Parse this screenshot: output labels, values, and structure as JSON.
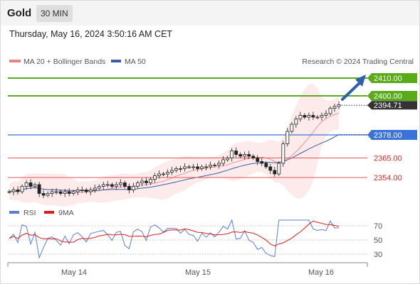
{
  "header": {
    "instrument": "Gold",
    "timeframe": "30 MIN"
  },
  "datetime": "Thursday, May 16, 2024 3:50:16 AM CET",
  "legend": {
    "bollinger": "MA 20 + Bollinger Bands",
    "ma50": "MA 50",
    "credit": "Research © 2024 Trading Central",
    "rsi": "RSI",
    "ma9": "9MA"
  },
  "colors": {
    "green_level": "#5aab19",
    "blue_level": "#3a72d8",
    "red_level": "#e05555",
    "price_label": "#333333",
    "arrow": "#2f5fb0",
    "bollinger": "#f08080",
    "ma50": "#3a5ea8",
    "candle": "#222222"
  },
  "levels": [
    {
      "value": 2410.0,
      "label": "2410.00",
      "color": "green",
      "name": "resistance-2410"
    },
    {
      "value": 2400.0,
      "label": "2400.00",
      "color": "green",
      "name": "resistance-2400"
    },
    {
      "value": 2378.0,
      "label": "2378.00",
      "color": "blue",
      "name": "pivot-2378"
    },
    {
      "value": 2365.0,
      "label": "2365.00",
      "color": "red",
      "name": "support-2365"
    },
    {
      "value": 2354.0,
      "label": "2354.00",
      "color": "red",
      "name": "support-2354"
    }
  ],
  "current_price": {
    "value": 2394.71,
    "label": "2394.71"
  },
  "chart_data": {
    "type": "candlestick",
    "x_ticks": [
      "May 14",
      "May 15",
      "May 16"
    ],
    "price_range": [
      2344,
      2414
    ],
    "rsi_levels": [
      70,
      50,
      30
    ],
    "rsi_range": [
      20,
      80
    ],
    "closes": [
      2346,
      2347,
      2346,
      2349,
      2351,
      2349,
      2350,
      2345,
      2344,
      2345,
      2346,
      2346,
      2345,
      2346,
      2345,
      2346,
      2347,
      2347,
      2346,
      2347,
      2348,
      2349,
      2350,
      2350,
      2349,
      2350,
      2351,
      2349,
      2347,
      2349,
      2351,
      2352,
      2351,
      2353,
      2355,
      2356,
      2356,
      2357,
      2358,
      2359,
      2359,
      2360,
      2360,
      2360,
      2359,
      2360,
      2360,
      2361,
      2361,
      2362,
      2364,
      2365,
      2369,
      2367,
      2366,
      2367,
      2366,
      2365,
      2363,
      2362,
      2360,
      2358,
      2356,
      2362,
      2373,
      2380,
      2384,
      2387,
      2389,
      2388,
      2389,
      2388,
      2388,
      2389,
      2390,
      2393,
      2394,
      2395
    ]
  }
}
